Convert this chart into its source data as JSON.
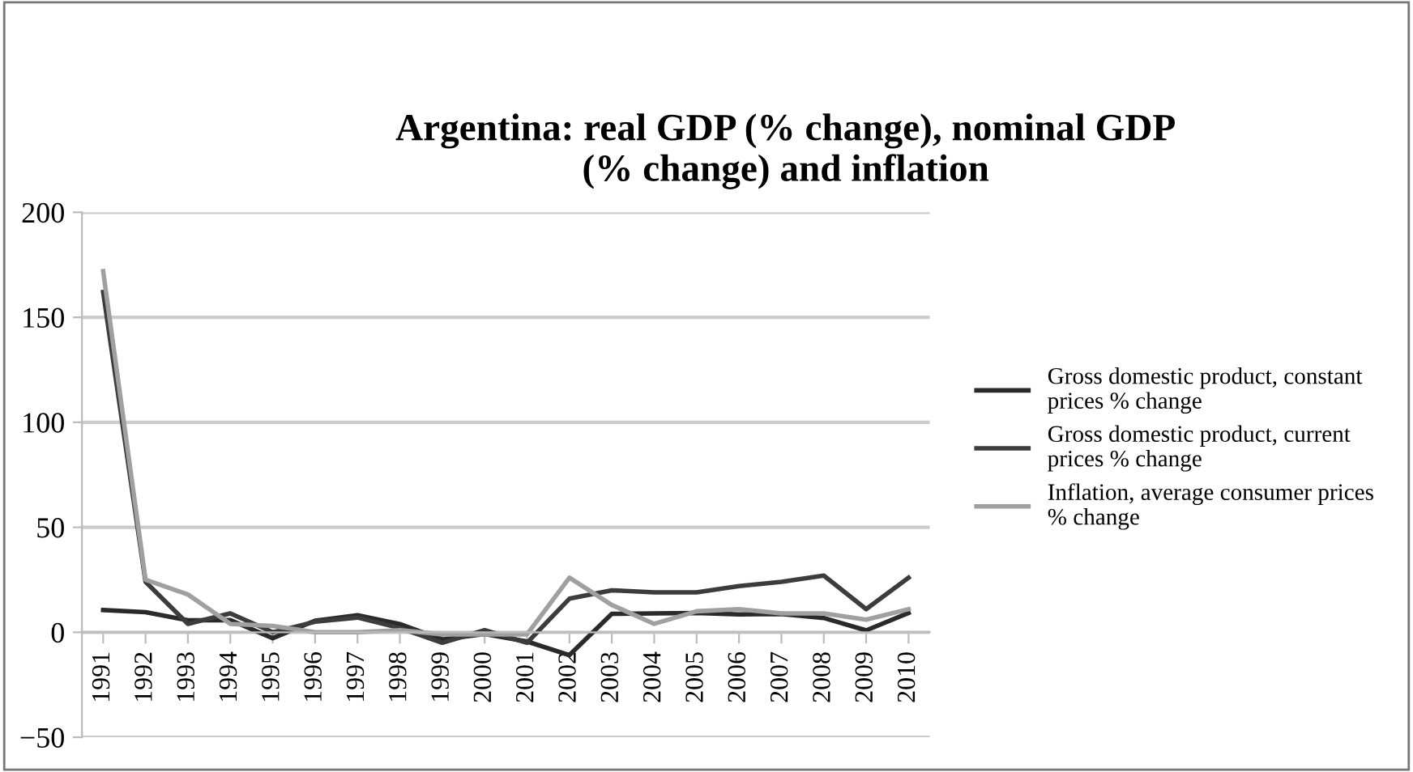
{
  "chart_data": {
    "type": "line",
    "title": "Argentina: real GDP (% change), nominal GDP\n(% change) and inflation",
    "categories": [
      "1991",
      "1992",
      "1993",
      "1994",
      "1995",
      "1996",
      "1997",
      "1998",
      "1999",
      "2000",
      "2001",
      "2002",
      "2003",
      "2004",
      "2005",
      "2006",
      "2007",
      "2008",
      "2009",
      "2010"
    ],
    "series": [
      {
        "name": "Gross domestic product, constant prices % change",
        "color": "#2a2a2a",
        "values": [
          10.6,
          9.6,
          5.7,
          5.8,
          -2.8,
          5.5,
          8.1,
          3.9,
          -3.4,
          -0.8,
          -4.4,
          -10.9,
          8.8,
          9.0,
          9.2,
          8.5,
          8.7,
          6.8,
          0.9,
          9.2
        ]
      },
      {
        "name": "Gross domestic product, current prices % change",
        "color": "#3c3c3c",
        "values": [
          162,
          24,
          4,
          9,
          0,
          5,
          7,
          2,
          -5,
          1,
          -5,
          16,
          20,
          19,
          19,
          22,
          24,
          27,
          11,
          26
        ]
      },
      {
        "name": "Inflation, average consumer prices % change",
        "color": "#a0a0a0",
        "values": [
          172,
          25,
          18,
          4,
          3,
          0,
          0,
          1,
          -1,
          -1,
          -1,
          26,
          13,
          4,
          10,
          11,
          9,
          9,
          6,
          11
        ]
      }
    ],
    "ylim": [
      -50,
      200
    ],
    "yticks": [
      {
        "value": -50,
        "label": "−50"
      },
      0,
      50,
      100,
      150,
      200
    ],
    "grid": "y",
    "legend": "right",
    "marker": "none",
    "line_style": "solid"
  }
}
